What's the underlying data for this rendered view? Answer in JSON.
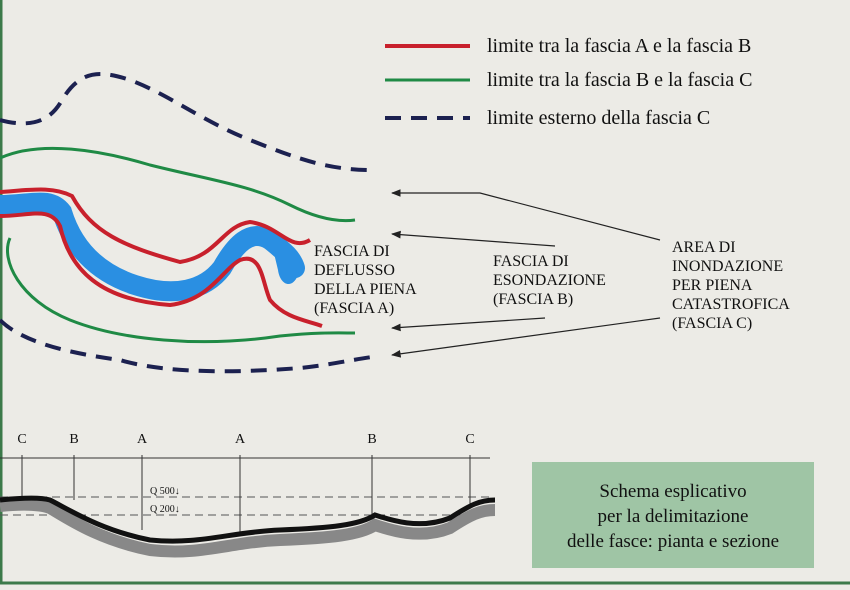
{
  "legend": {
    "items": [
      {
        "label": "limite tra la fascia A e la fascia B"
      },
      {
        "label": "limite tra la fascia B e la fascia C"
      },
      {
        "label": "limite esterno della fascia C"
      }
    ]
  },
  "labels": {
    "fascia_a": {
      "lines": [
        "FASCIA DI",
        "DEFLUSSO",
        "DELLA PIENA",
        "(FASCIA A)"
      ]
    },
    "fascia_b": {
      "lines": [
        "FASCIA DI",
        "ESONDAZIONE",
        "(FASCIA B)"
      ]
    },
    "fascia_c": {
      "lines": [
        "AREA DI",
        "INONDAZIONE",
        "PER PIENA",
        "CATASTROFICA",
        "(FASCIA C)"
      ]
    }
  },
  "section": {
    "markers": [
      "C",
      "B",
      "A",
      "A",
      "B",
      "C"
    ],
    "levels": [
      "Q 500↓",
      "Q 200↓"
    ]
  },
  "caption": {
    "lines": [
      "Schema esplicativo",
      "per la delimitazione",
      "delle fasce: pianta e sezione"
    ]
  }
}
